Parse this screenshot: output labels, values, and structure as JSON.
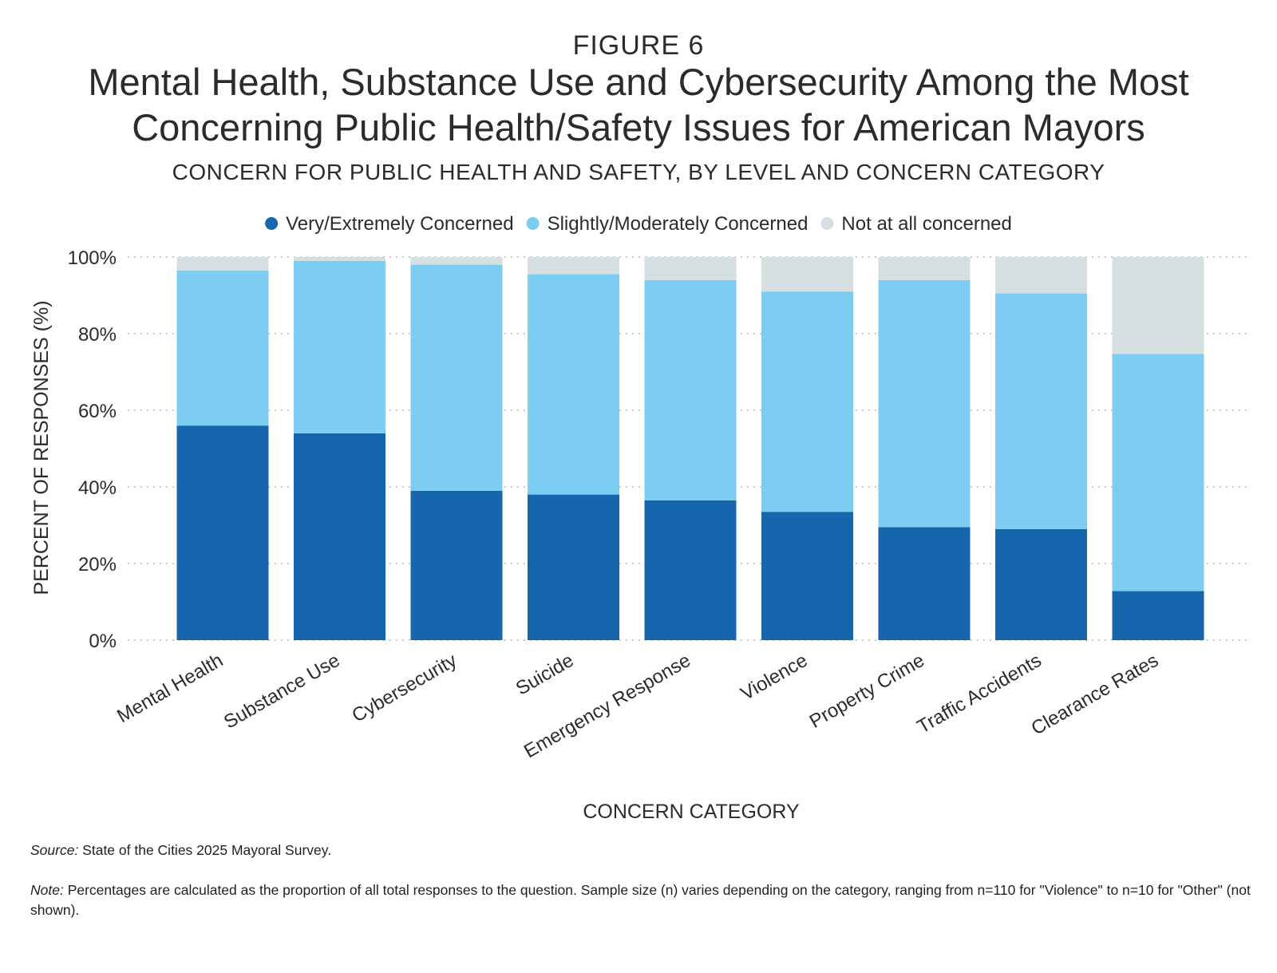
{
  "figure_label": "FIGURE 6",
  "title": "Mental Health, Substance Use and Cybersecurity Among the Most Concerning Public Health/Safety Issues for American Mayors",
  "subtitle": "CONCERN FOR PUBLIC HEALTH AND SAFETY, BY LEVEL AND CONCERN CATEGORY",
  "colors": {
    "very": "#1666ad",
    "slightly": "#7dccf1",
    "not": "#d5dfe1",
    "grid": "#b5b5b5",
    "text": "#2b2b2b"
  },
  "chart_data": {
    "type": "bar",
    "stacked": true,
    "title": "CONCERN FOR PUBLIC HEALTH AND SAFETY, BY LEVEL AND CONCERN CATEGORY",
    "xlabel": "CONCERN CATEGORY",
    "ylabel": "PERCENT OF RESPONSES (%)",
    "ylim": [
      0,
      100
    ],
    "yticks": [
      "0%",
      "20%",
      "40%",
      "60%",
      "80%",
      "100%"
    ],
    "grid": true,
    "legend_position": "top-center",
    "categories": [
      "Mental Health",
      "Substance Use",
      "Cybersecurity",
      "Suicide",
      "Emergency Response",
      "Violence",
      "Property Crime",
      "Traffic Accidents",
      "Clearance Rates"
    ],
    "series": [
      {
        "name": "Very/Extremely Concerned",
        "color_key": "very",
        "values": [
          56,
          54,
          39,
          38,
          36.5,
          33.5,
          29.5,
          29,
          12.8
        ]
      },
      {
        "name": "Slightly/Moderately Concerned",
        "color_key": "slightly",
        "values": [
          40.5,
          45,
          59,
          57.5,
          57.5,
          57.5,
          64.5,
          61.5,
          61.9
        ]
      },
      {
        "name": "Not at all concerned",
        "color_key": "not",
        "values": [
          3.5,
          1,
          2,
          4.5,
          6,
          9,
          6,
          9.5,
          25.3
        ]
      }
    ]
  },
  "notes": {
    "source_label": "Source:",
    "source_text": " State of the Cities 2025 Mayoral Survey.",
    "note_label": "Note:",
    "note_text": " Percentages are calculated as the proportion of all total responses to the question. Sample size (n) varies depending on the category, ranging from n=110 for \"Violence\" to n=10 for \"Other\" (not shown)."
  }
}
